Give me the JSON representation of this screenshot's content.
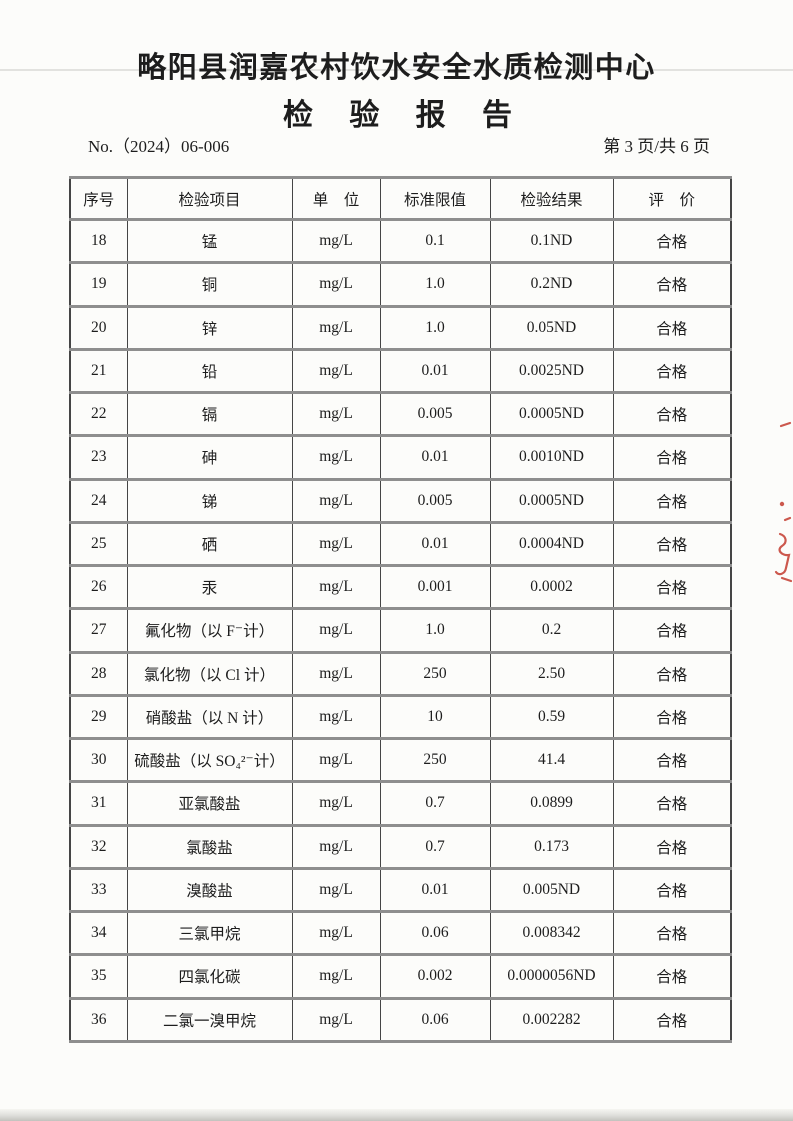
{
  "header": {
    "title": "略阳县润嘉农村饮水安全水质检测中心",
    "subtitle": "检 验 报 告"
  },
  "meta": {
    "report_no": "No.（2024）06-006",
    "page_indicator": "第 3 页/共 6 页"
  },
  "table": {
    "columns": [
      "序号",
      "检验项目",
      "单　位",
      "标准限值",
      "检验结果",
      "评　价"
    ],
    "rows": [
      {
        "no": "18",
        "item": "锰",
        "unit": "mg/L",
        "limit": "0.1",
        "result": "0.1ND",
        "evaluation": "合格"
      },
      {
        "no": "19",
        "item": "铜",
        "unit": "mg/L",
        "limit": "1.0",
        "result": "0.2ND",
        "evaluation": "合格"
      },
      {
        "no": "20",
        "item": "锌",
        "unit": "mg/L",
        "limit": "1.0",
        "result": "0.05ND",
        "evaluation": "合格"
      },
      {
        "no": "21",
        "item": "铅",
        "unit": "mg/L",
        "limit": "0.01",
        "result": "0.0025ND",
        "evaluation": "合格"
      },
      {
        "no": "22",
        "item": "镉",
        "unit": "mg/L",
        "limit": "0.005",
        "result": "0.0005ND",
        "evaluation": "合格"
      },
      {
        "no": "23",
        "item": "砷",
        "unit": "mg/L",
        "limit": "0.01",
        "result": "0.0010ND",
        "evaluation": "合格"
      },
      {
        "no": "24",
        "item": "锑",
        "unit": "mg/L",
        "limit": "0.005",
        "result": "0.0005ND",
        "evaluation": "合格"
      },
      {
        "no": "25",
        "item": "硒",
        "unit": "mg/L",
        "limit": "0.01",
        "result": "0.0004ND",
        "evaluation": "合格"
      },
      {
        "no": "26",
        "item": "汞",
        "unit": "mg/L",
        "limit": "0.001",
        "result": "0.0002",
        "evaluation": "合格"
      },
      {
        "no": "27",
        "item": "氟化物（以 F⁻计）",
        "unit": "mg/L",
        "limit": "1.0",
        "result": "0.2",
        "evaluation": "合格"
      },
      {
        "no": "28",
        "item": "氯化物（以 Cl 计）",
        "unit": "mg/L",
        "limit": "250",
        "result": "2.50",
        "evaluation": "合格"
      },
      {
        "no": "29",
        "item": "硝酸盐（以 N 计）",
        "unit": "mg/L",
        "limit": "10",
        "result": "0.59",
        "evaluation": "合格"
      },
      {
        "no": "30",
        "item": "硫酸盐（以 SO₄²⁻计）",
        "unit": "mg/L",
        "limit": "250",
        "result": "41.4",
        "evaluation": "合格"
      },
      {
        "no": "31",
        "item": "亚氯酸盐",
        "unit": "mg/L",
        "limit": "0.7",
        "result": "0.0899",
        "evaluation": "合格"
      },
      {
        "no": "32",
        "item": "氯酸盐",
        "unit": "mg/L",
        "limit": "0.7",
        "result": "0.173",
        "evaluation": "合格"
      },
      {
        "no": "33",
        "item": "溴酸盐",
        "unit": "mg/L",
        "limit": "0.01",
        "result": "0.005ND",
        "evaluation": "合格"
      },
      {
        "no": "34",
        "item": "三氯甲烷",
        "unit": "mg/L",
        "limit": "0.06",
        "result": "0.008342",
        "evaluation": "合格"
      },
      {
        "no": "35",
        "item": "四氯化碳",
        "unit": "mg/L",
        "limit": "0.002",
        "result": "0.0000056ND",
        "evaluation": "合格"
      },
      {
        "no": "36",
        "item": "二氯一溴甲烷",
        "unit": "mg/L",
        "limit": "0.06",
        "result": "0.002282",
        "evaluation": "合格"
      }
    ]
  },
  "theme": {
    "paper": "#fcfcfa",
    "ink": "#1d1d1d",
    "border_dark": "#454545",
    "border_gray": "#8e8e8e",
    "artifact_red": "#c43c30",
    "artifact_line": "#e2e2df"
  }
}
